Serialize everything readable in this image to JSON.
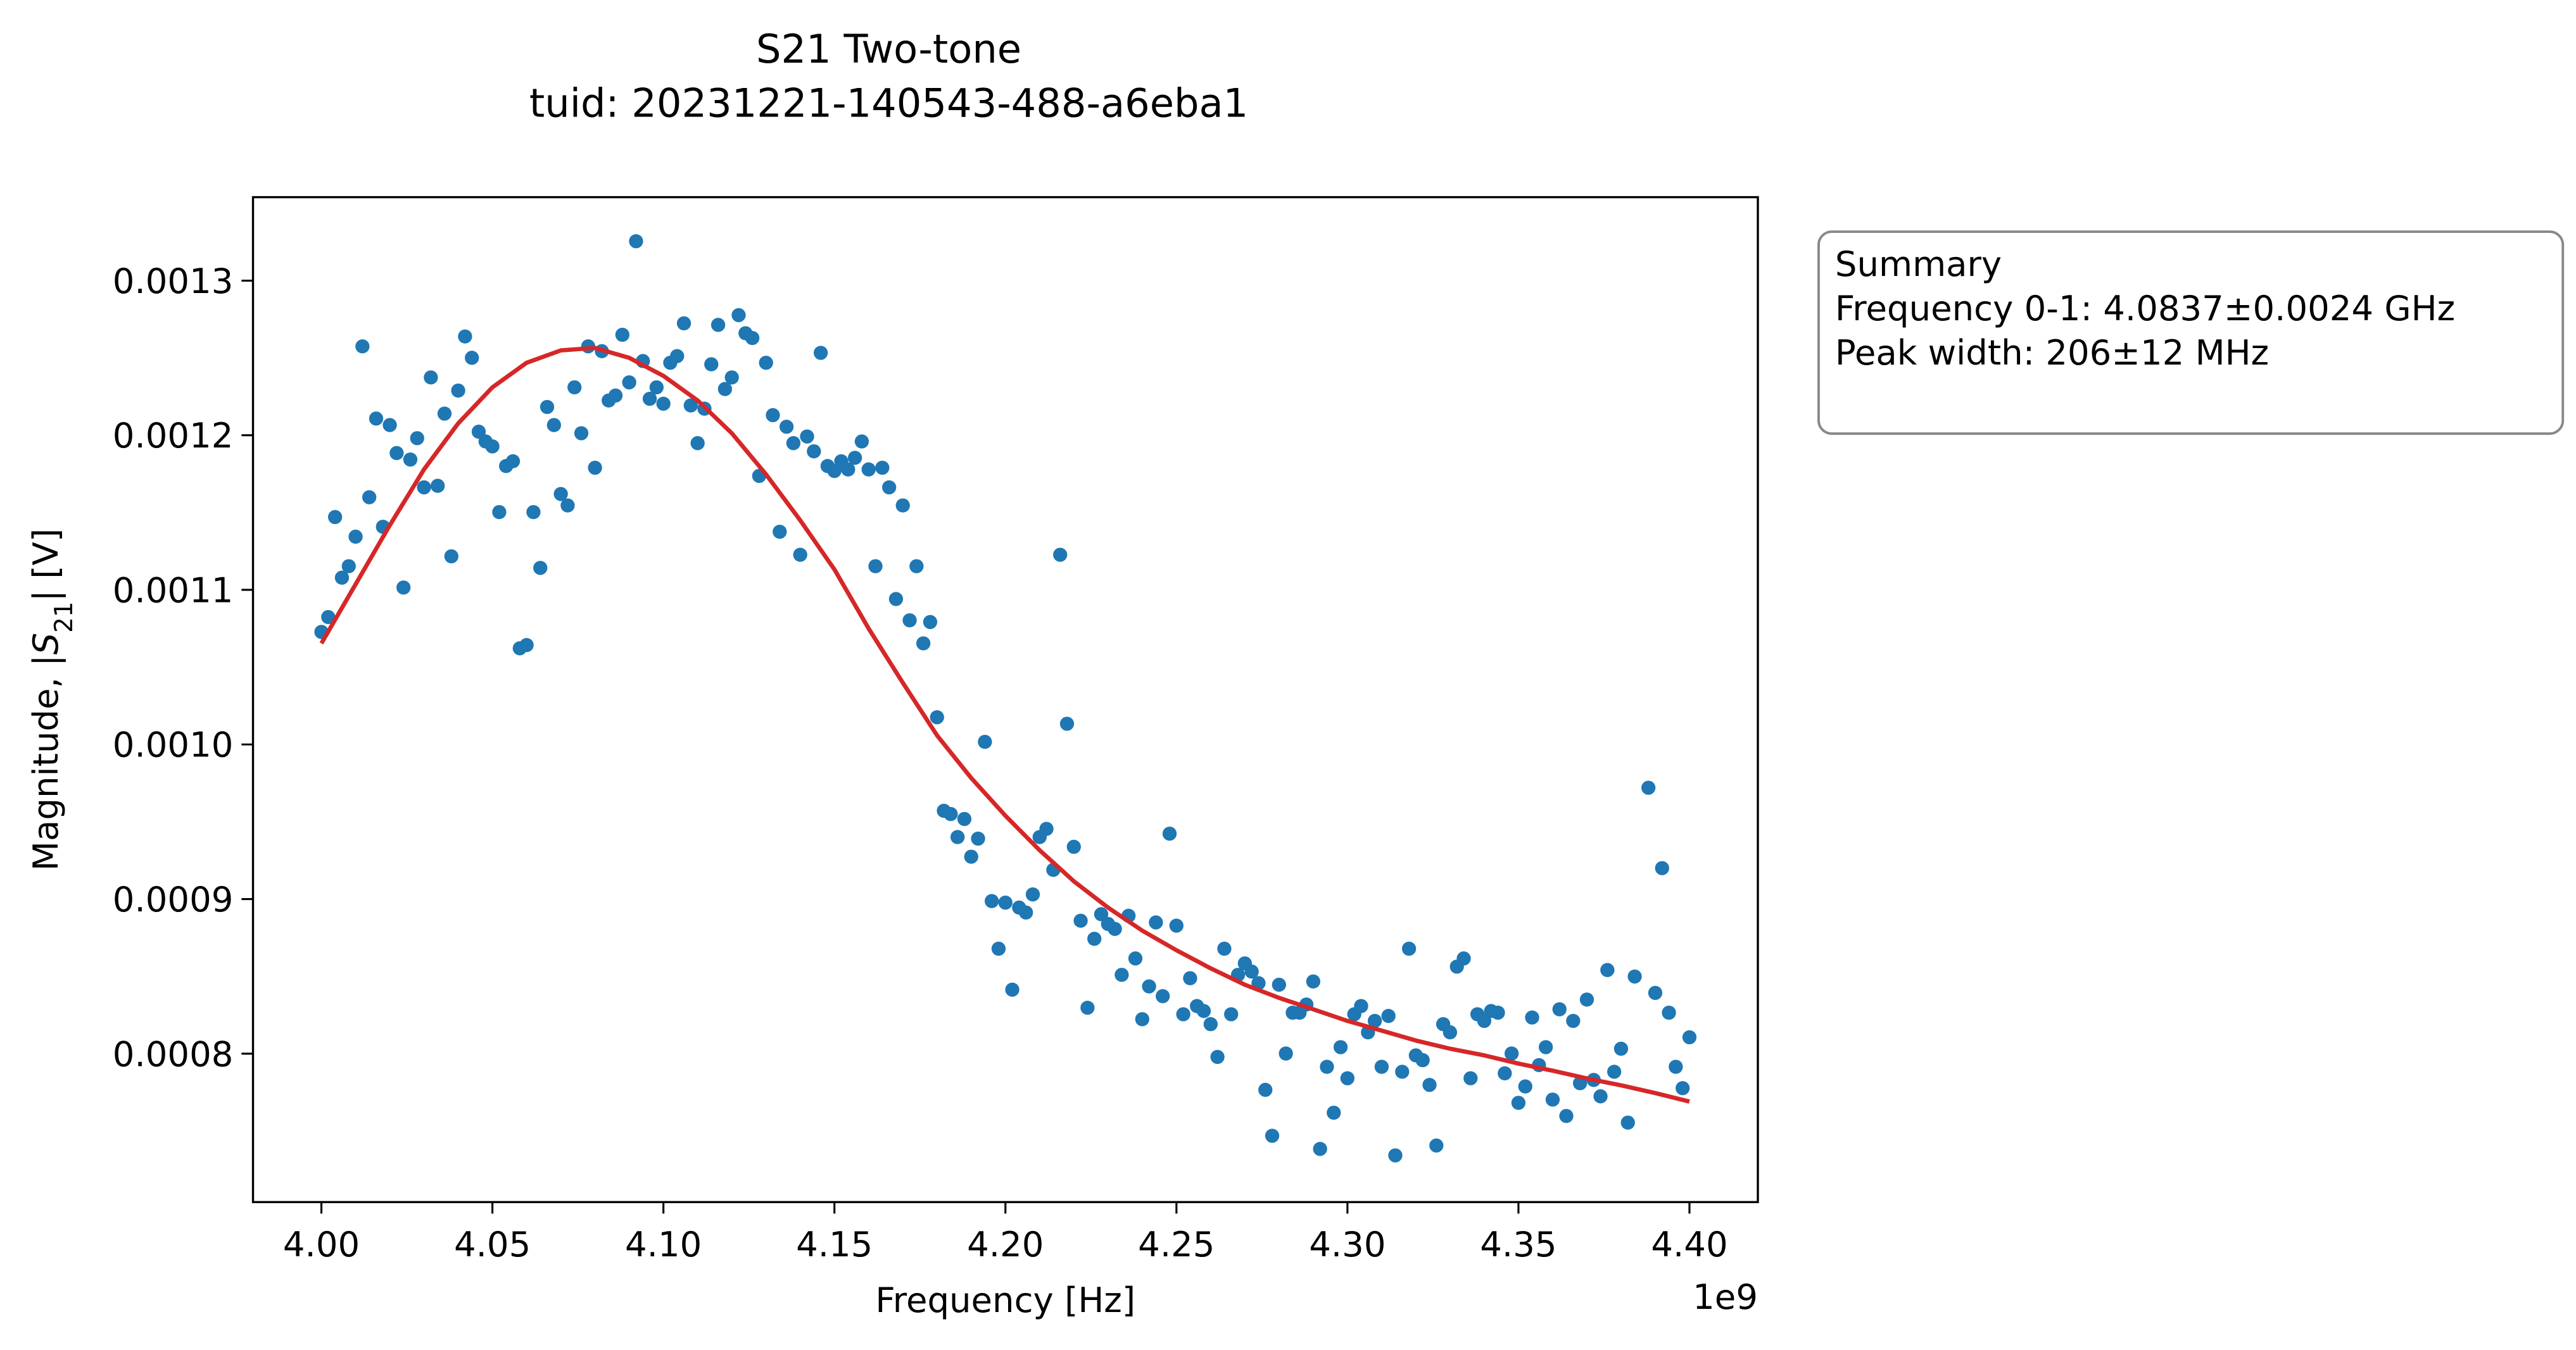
{
  "chart_data": {
    "type": "scatter",
    "title": [
      "S21 Two-tone",
      "tuid: 20231221-140543-488-a6eba1"
    ],
    "x_label": "Frequency [Hz]",
    "x_offset_label": "1e9",
    "y_label": "Magnitude, |S21| [V]",
    "xlim": [
      3.98,
      4.42
    ],
    "ylim": [
      0.000704,
      0.001354
    ],
    "xticks": [
      {
        "value": 4,
        "label": "4.00"
      },
      {
        "value": 4.05,
        "label": "4.05"
      },
      {
        "value": 4.1,
        "label": "4.10"
      },
      {
        "value": 4.15,
        "label": "4.15"
      },
      {
        "value": 4.2,
        "label": "4.20"
      },
      {
        "value": 4.25,
        "label": "4.25"
      },
      {
        "value": 4.3,
        "label": "4.30"
      },
      {
        "value": 4.35,
        "label": "4.35"
      },
      {
        "value": 4.4,
        "label": "4.40"
      }
    ],
    "yticks": [
      0.0008,
      0.0009,
      {
        "value": 0.001,
        "label": "0.0010"
      },
      0.0011,
      0.0012,
      0.0013
    ],
    "grid": false,
    "summary": [
      "Summary",
      "Frequency 0-1: 4.0837±0.0024 GHz",
      "Peak width: 206±12 MHz"
    ],
    "series": [
      {
        "type": "scatter",
        "color": "#1f77b4",
        "x": [
          4,
          4.002,
          4.004,
          4.006,
          4.008,
          4.01,
          4.012,
          4.014,
          4.016,
          4.018,
          4.02,
          4.022,
          4.024,
          4.026,
          4.028,
          4.03,
          4.032,
          4.034,
          4.036,
          4.038,
          4.04,
          4.042,
          4.044,
          4.046,
          4.048,
          4.05,
          4.052,
          4.054,
          4.056,
          4.058,
          4.06,
          4.062,
          4.064,
          4.066,
          4.068,
          4.07,
          4.072,
          4.074,
          4.076,
          4.078,
          4.08,
          4.082,
          4.084,
          4.086,
          4.088,
          4.09,
          4.092,
          4.094,
          4.096,
          4.098,
          4.1,
          4.102,
          4.104,
          4.106,
          4.108,
          4.11,
          4.112,
          4.114,
          4.116,
          4.118,
          4.12,
          4.122,
          4.124,
          4.126,
          4.128,
          4.13,
          4.132,
          4.134,
          4.136,
          4.138,
          4.14,
          4.142,
          4.144,
          4.146,
          4.148,
          4.15,
          4.152,
          4.154,
          4.156,
          4.158,
          4.16,
          4.162,
          4.164,
          4.166,
          4.168,
          4.17,
          4.172,
          4.174,
          4.176,
          4.178,
          4.18,
          4.182,
          4.184,
          4.186,
          4.188,
          4.19,
          4.192,
          4.194,
          4.196,
          4.198,
          4.2,
          4.202,
          4.204,
          4.206,
          4.208,
          4.21,
          4.212,
          4.214,
          4.216,
          4.218,
          4.22,
          4.222,
          4.224,
          4.226,
          4.228,
          4.23,
          4.232,
          4.234,
          4.236,
          4.238,
          4.24,
          4.242,
          4.244,
          4.246,
          4.248,
          4.25,
          4.252,
          4.254,
          4.256,
          4.258,
          4.26,
          4.262,
          4.264,
          4.266,
          4.268,
          4.27,
          4.272,
          4.274,
          4.276,
          4.278,
          4.28,
          4.282,
          4.284,
          4.286,
          4.288,
          4.29,
          4.292,
          4.294,
          4.296,
          4.298,
          4.3,
          4.302,
          4.304,
          4.306,
          4.308,
          4.31,
          4.312,
          4.314,
          4.316,
          4.318,
          4.32,
          4.322,
          4.324,
          4.326,
          4.328,
          4.33,
          4.332,
          4.334,
          4.336,
          4.338,
          4.34,
          4.342,
          4.344,
          4.346,
          4.348,
          4.35,
          4.352,
          4.354,
          4.356,
          4.358,
          4.36,
          4.362,
          4.364,
          4.366,
          4.368,
          4.37,
          4.372,
          4.374,
          4.376,
          4.378,
          4.38,
          4.382,
          4.384,
          4.388,
          4.39,
          4.392,
          4.394,
          4.396,
          4.398,
          4.4
        ],
        "values": [
          0.0010728,
          0.0010824,
          0.0011471,
          0.0011079,
          0.0011153,
          0.0011344,
          0.0012575,
          0.0011599,
          0.0012108,
          0.0011408,
          0.0012066,
          0.0011885,
          0.0011015,
          0.0011843,
          0.0011981,
          0.0011663,
          0.0012374,
          0.0011673,
          0.001214,
          0.0011217,
          0.0012289,
          0.0012639,
          0.0012501,
          0.0012023,
          0.001196,
          0.0011928,
          0.0011503,
          0.0011801,
          0.0011832,
          0.0010622,
          0.0010643,
          0.0011503,
          0.0011142,
          0.0012183,
          0.0012066,
          0.001162,
          0.0011546,
          0.001231,
          0.0012013,
          0.0012575,
          0.001179,
          0.0012544,
          0.0012225,
          0.0012257,
          0.001265,
          0.0012342,
          0.0013255,
          0.001248,
          0.0012236,
          0.001231,
          0.0012204,
          0.0012469,
          0.0012512,
          0.0012724,
          0.0012193,
          0.0011949,
          0.0012172,
          0.0012459,
          0.0012714,
          0.0012299,
          0.0012374,
          0.0012777,
          0.001266,
          0.0012629,
          0.0011737,
          0.0012469,
          0.001213,
          0.0011376,
          0.0012055,
          0.0011949,
          0.0011227,
          0.0011992,
          0.0011896,
          0.0012533,
          0.0011801,
          0.0011769,
          0.0011832,
          0.0011779,
          0.0011854,
          0.001196,
          0.0011779,
          0.0011153,
          0.001179,
          0.0011663,
          0.0010941,
          0.0011546,
          0.0010803,
          0.0011153,
          0.0010654,
          0.0010792,
          0.0010176,
          0.0009571,
          0.000955,
          0.0009401,
          0.0009518,
          0.0009274,
          0.0009391,
          0.0010017,
          0.0008987,
          0.0008679,
          0.0008977,
          0.0008414,
          0.0008945,
          0.0008913,
          0.000903,
          0.0009401,
          0.0009454,
          0.0009189,
          0.0011227,
          0.0010134,
          0.0009338,
          0.000886,
          0.0008297,
          0.0008743,
          0.0008902,
          0.0008839,
          0.0008807,
          0.000851,
          0.0008892,
          0.0008616,
          0.0008223,
          0.0008435,
          0.0008849,
          0.0008372,
          0.0009423,
          0.0008828,
          0.0008255,
          0.0008488,
          0.0008308,
          0.0008276,
          0.0008191,
          0.0007979,
          0.0008679,
          0.0008255,
          0.000851,
          0.0008584,
          0.0008531,
          0.0008456,
          0.0007766,
          0.0007469,
          0.0008446,
          0.0008001,
          0.0008265,
          0.0008265,
          0.0008318,
          0.0008467,
          0.0007384,
          0.0007915,
          0.0007618,
          0.0008042,
          0.0007841,
          0.0008255,
          0.0008308,
          0.0008138,
          0.0008212,
          0.0007915,
          0.0008244,
          0.0007342,
          0.0007883,
          0.0008679,
          0.0007989,
          0.0007958,
          0.0007798,
          0.0007406,
          0.0008191,
          0.0008138,
          0.0008563,
          0.0008616,
          0.0007841,
          0.0008255,
          0.0008212,
          0.0008276,
          0.0008265,
          0.0007873,
          0.0008001,
          0.0007682,
          0.0007788,
          0.0008234,
          0.0007926,
          0.0008042,
          0.0007703,
          0.0008287,
          0.0007597,
          0.0008212,
          0.0007809,
          0.000835,
          0.000783,
          0.0007724,
          0.0008541,
          0.0007883,
          0.0008032,
          0.0007554,
          0.0008499,
          0.000972,
          0.0008393,
          0.00092,
          0.0008265,
          0.0007915,
          0.0007777,
          0.0008106
        ]
      },
      {
        "type": "line",
        "color": "#d62728",
        "x": [
          4,
          4.01,
          4.02,
          4.03,
          4.04,
          4.05,
          4.06,
          4.07,
          4.08,
          4.09,
          4.1,
          4.11,
          4.12,
          4.13,
          4.14,
          4.15,
          4.16,
          4.17,
          4.18,
          4.19,
          4.2,
          4.21,
          4.22,
          4.23,
          4.24,
          4.25,
          4.26,
          4.27,
          4.28,
          4.29,
          4.3,
          4.31,
          4.32,
          4.33,
          4.34,
          4.35,
          4.36,
          4.37,
          4.38,
          4.39,
          4.4
        ],
        "values": [
          0.0010654,
          0.0011036,
          0.0011418,
          0.0011779,
          0.0012077,
          0.001231,
          0.0012469,
          0.0012549,
          0.0012565,
          0.0012501,
          0.0012384,
          0.0012225,
          0.0012013,
          0.0011747,
          0.001145,
          0.0011132,
          0.001075,
          0.0010399,
          0.0010059,
          0.0009783,
          0.0009539,
          0.0009316,
          0.0009115,
          0.0008945,
          0.0008796,
          0.0008669,
          0.0008552,
          0.0008446,
          0.0008361,
          0.0008287,
          0.0008212,
          0.0008149,
          0.0008085,
          0.0008032,
          0.0007989,
          0.0007936,
          0.000789,
          0.000784,
          0.0007795,
          0.0007745,
          0.000769
        ]
      }
    ]
  }
}
